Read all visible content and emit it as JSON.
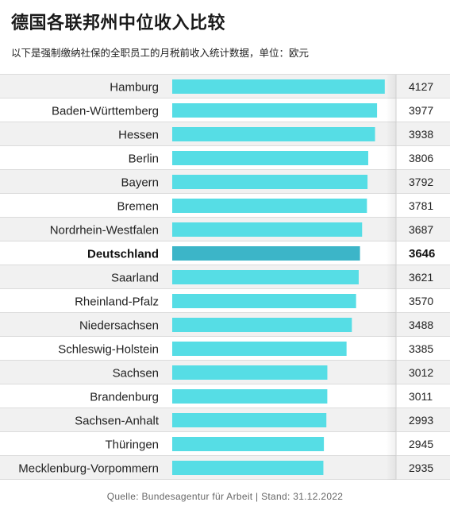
{
  "title": "德国各联邦州中位收入比较",
  "subtitle": "以下是强制缴纳社保的全职员工的月税前收入统计数据，单位：欧元",
  "source": "Quelle: Bundesagentur für Arbeit | Stand: 31.12.2022",
  "colors": {
    "bar": "#56dde5",
    "bar_highlight": "#3cb5c8",
    "row_alt": "#f1f1f1",
    "row": "#ffffff"
  },
  "chart_data": {
    "type": "bar",
    "orientation": "horizontal",
    "categories": [
      "Hamburg",
      "Baden-Württemberg",
      "Hessen",
      "Berlin",
      "Bayern",
      "Bremen",
      "Nordrhein-Westfalen",
      "Deutschland",
      "Saarland",
      "Rheinland-Pfalz",
      "Niedersachsen",
      "Schleswig-Holstein",
      "Sachsen",
      "Brandenburg",
      "Sachsen-Anhalt",
      "Thüringen",
      "Mecklenburg-Vorpommern"
    ],
    "values": [
      4127,
      3977,
      3938,
      3806,
      3792,
      3781,
      3687,
      3646,
      3621,
      3570,
      3488,
      3385,
      3012,
      3011,
      2993,
      2945,
      2935
    ],
    "value_labels": [
      "4127",
      "3977",
      "3938",
      "3806",
      "3792",
      "3781",
      "3687",
      "3646",
      "3621",
      "3570",
      "3488",
      "3385",
      "3012",
      "3011",
      "2993",
      "2945",
      "2935"
    ],
    "highlight": "Deutschland",
    "xlim": [
      0,
      4200
    ],
    "grid": false,
    "legend": "none"
  }
}
